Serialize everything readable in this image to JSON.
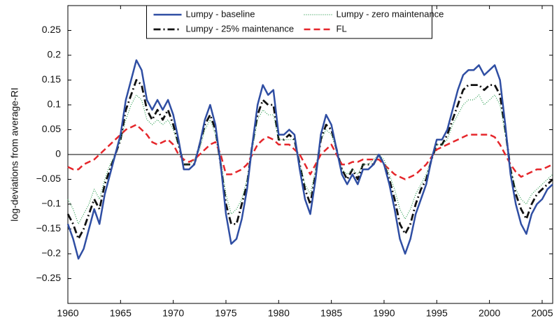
{
  "chart_data": {
    "type": "line",
    "y_label": "log-deviations from average-RI",
    "x": [
      1960,
      1960.5,
      1961,
      1961.5,
      1962,
      1962.5,
      1963,
      1963.5,
      1964,
      1964.5,
      1965,
      1965.5,
      1966,
      1966.5,
      1967,
      1967.5,
      1968,
      1968.5,
      1969,
      1969.5,
      1970,
      1970.5,
      1971,
      1971.5,
      1972,
      1972.5,
      1973,
      1973.5,
      1974,
      1974.5,
      1975,
      1975.5,
      1976,
      1976.5,
      1977,
      1977.5,
      1978,
      1978.5,
      1979,
      1979.5,
      1980,
      1980.5,
      1981,
      1981.5,
      1982,
      1982.5,
      1983,
      1983.5,
      1984,
      1984.5,
      1985,
      1985.5,
      1986,
      1986.5,
      1987,
      1987.5,
      1988,
      1988.5,
      1989,
      1989.5,
      1990,
      1990.5,
      1991,
      1991.5,
      1992,
      1992.5,
      1993,
      1993.5,
      1994,
      1994.5,
      1995,
      1995.5,
      1996,
      1996.5,
      1997,
      1997.5,
      1998,
      1998.5,
      1999,
      1999.5,
      2000,
      2000.5,
      2001,
      2001.5,
      2002,
      2002.5,
      2003,
      2003.5,
      2004,
      2004.5,
      2005,
      2005.5,
      2006
    ],
    "series": [
      {
        "name": "Lumpy - baseline",
        "color": "#2f4ea3",
        "style": "solid",
        "values": [
          -0.14,
          -0.17,
          -0.21,
          -0.19,
          -0.15,
          -0.11,
          -0.14,
          -0.08,
          -0.04,
          0.0,
          0.04,
          0.11,
          0.15,
          0.19,
          0.17,
          0.11,
          0.09,
          0.11,
          0.09,
          0.11,
          0.08,
          0.03,
          -0.03,
          -0.03,
          -0.02,
          0.02,
          0.07,
          0.1,
          0.06,
          -0.02,
          -0.12,
          -0.18,
          -0.17,
          -0.13,
          -0.07,
          0.02,
          0.1,
          0.14,
          0.12,
          0.13,
          0.04,
          0.04,
          0.05,
          0.04,
          -0.03,
          -0.09,
          -0.12,
          -0.05,
          0.04,
          0.08,
          0.06,
          0.01,
          -0.04,
          -0.06,
          -0.04,
          -0.06,
          -0.03,
          -0.03,
          -0.02,
          0.0,
          -0.02,
          -0.06,
          -0.11,
          -0.17,
          -0.2,
          -0.17,
          -0.12,
          -0.09,
          -0.06,
          -0.01,
          0.03,
          0.03,
          0.05,
          0.09,
          0.13,
          0.16,
          0.17,
          0.17,
          0.18,
          0.16,
          0.17,
          0.18,
          0.15,
          0.06,
          -0.04,
          -0.1,
          -0.14,
          -0.16,
          -0.12,
          -0.1,
          -0.09,
          -0.07,
          -0.06
        ]
      },
      {
        "name": "Lumpy - zero maintenance",
        "color": "#2e9e52",
        "style": "dotted",
        "values": [
          -0.09,
          -0.11,
          -0.14,
          -0.12,
          -0.1,
          -0.07,
          -0.09,
          -0.05,
          -0.02,
          0.0,
          0.03,
          0.07,
          0.1,
          0.12,
          0.11,
          0.07,
          0.06,
          0.07,
          0.06,
          0.07,
          0.05,
          0.02,
          -0.02,
          -0.02,
          -0.01,
          0.01,
          0.05,
          0.07,
          0.04,
          -0.01,
          -0.08,
          -0.12,
          -0.11,
          -0.09,
          -0.05,
          0.01,
          0.07,
          0.09,
          0.08,
          0.08,
          0.03,
          0.03,
          0.03,
          0.03,
          -0.02,
          -0.06,
          -0.08,
          -0.03,
          0.03,
          0.05,
          0.04,
          0.01,
          -0.03,
          -0.04,
          -0.03,
          -0.04,
          -0.02,
          -0.02,
          -0.01,
          0.0,
          -0.01,
          -0.04,
          -0.07,
          -0.11,
          -0.13,
          -0.11,
          -0.08,
          -0.06,
          -0.04,
          -0.01,
          0.02,
          0.02,
          0.03,
          0.06,
          0.08,
          0.1,
          0.11,
          0.11,
          0.12,
          0.1,
          0.11,
          0.12,
          0.1,
          0.04,
          -0.03,
          -0.07,
          -0.09,
          -0.1,
          -0.08,
          -0.07,
          -0.06,
          -0.05,
          -0.04
        ]
      },
      {
        "name": "Lumpy - 25% maintenance",
        "color": "#111111",
        "style": "dashdot",
        "values": [
          -0.12,
          -0.14,
          -0.17,
          -0.15,
          -0.12,
          -0.09,
          -0.11,
          -0.06,
          -0.03,
          0.0,
          0.03,
          0.09,
          0.12,
          0.15,
          0.14,
          0.09,
          0.07,
          0.09,
          0.07,
          0.09,
          0.06,
          0.02,
          -0.02,
          -0.02,
          -0.02,
          0.02,
          0.06,
          0.08,
          0.05,
          -0.02,
          -0.1,
          -0.14,
          -0.14,
          -0.1,
          -0.06,
          0.02,
          0.08,
          0.11,
          0.1,
          0.1,
          0.03,
          0.03,
          0.04,
          0.03,
          -0.02,
          -0.07,
          -0.1,
          -0.04,
          0.03,
          0.06,
          0.05,
          0.01,
          -0.03,
          -0.05,
          -0.03,
          -0.05,
          -0.02,
          -0.02,
          -0.02,
          0.0,
          -0.02,
          -0.05,
          -0.09,
          -0.14,
          -0.16,
          -0.14,
          -0.1,
          -0.07,
          -0.05,
          -0.01,
          0.02,
          0.02,
          0.04,
          0.07,
          0.1,
          0.13,
          0.14,
          0.14,
          0.14,
          0.13,
          0.14,
          0.14,
          0.12,
          0.05,
          -0.03,
          -0.08,
          -0.11,
          -0.13,
          -0.1,
          -0.08,
          -0.07,
          -0.06,
          -0.05
        ]
      },
      {
        "name": "FL",
        "color": "#e5262b",
        "style": "dashed",
        "values": [
          -0.025,
          -0.03,
          -0.03,
          -0.02,
          -0.015,
          -0.01,
          0.0,
          0.01,
          0.02,
          0.03,
          0.04,
          0.05,
          0.055,
          0.06,
          0.05,
          0.04,
          0.025,
          0.02,
          0.025,
          0.03,
          0.02,
          0.0,
          -0.01,
          -0.015,
          -0.01,
          0.0,
          0.01,
          0.02,
          0.025,
          0.0,
          -0.04,
          -0.04,
          -0.035,
          -0.03,
          -0.02,
          0.0,
          0.02,
          0.03,
          0.035,
          0.03,
          0.02,
          0.02,
          0.02,
          0.01,
          0.0,
          -0.02,
          -0.04,
          -0.02,
          0.0,
          0.01,
          0.02,
          0.0,
          -0.02,
          -0.02,
          -0.015,
          -0.015,
          -0.01,
          -0.01,
          -0.01,
          -0.01,
          -0.02,
          -0.03,
          -0.04,
          -0.045,
          -0.05,
          -0.045,
          -0.04,
          -0.03,
          -0.02,
          -0.005,
          0.01,
          0.015,
          0.02,
          0.025,
          0.03,
          0.035,
          0.04,
          0.04,
          0.04,
          0.04,
          0.04,
          0.035,
          0.02,
          0.0,
          -0.02,
          -0.035,
          -0.045,
          -0.04,
          -0.035,
          -0.03,
          -0.03,
          -0.025,
          -0.02
        ]
      }
    ],
    "xlim": [
      1960,
      2006
    ],
    "xticks": [
      1960,
      1965,
      1970,
      1975,
      1980,
      1985,
      1990,
      1995,
      2000,
      2005
    ],
    "ylim": [
      -0.3,
      0.3
    ],
    "yticks": [
      {
        "value": -0.25,
        "label": "−0.25"
      },
      {
        "value": -0.2,
        "label": "−0.2"
      },
      {
        "value": -0.15,
        "label": "−0.15"
      },
      {
        "value": -0.1,
        "label": "−0.1"
      },
      {
        "value": -0.05,
        "label": "−0.05"
      },
      0,
      0.05,
      0.1,
      0.15,
      0.2,
      0.25
    ],
    "zero_line": true,
    "grid": false,
    "legend": "upper center"
  }
}
